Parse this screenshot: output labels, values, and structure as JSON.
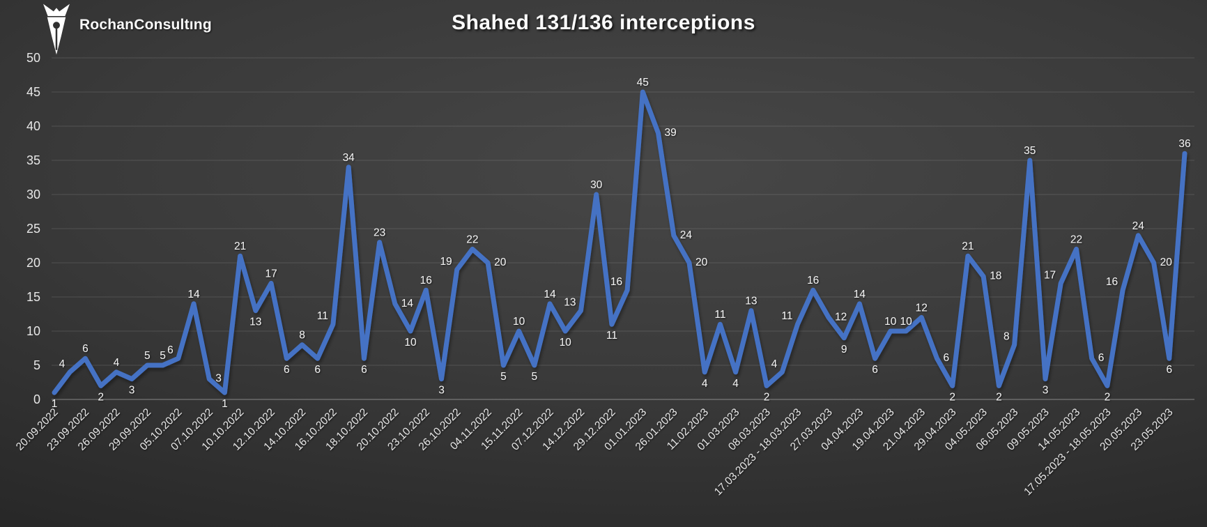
{
  "header": {
    "logo_text": "RochanConsultıng",
    "logo_icon": "pen-nib-icon",
    "title": "Shahed 131/136 interceptions"
  },
  "colors": {
    "line": "#4472C4",
    "data_label": "#F2F2F2",
    "axis_label": "#E8E8E8",
    "gridline_rgba": "rgba(255,255,255,0.13)",
    "axis_line_rgba": "rgba(255,255,255,0.28)",
    "title_text": "#FCFCFC",
    "logo_white": "#FFFFFF",
    "background_center": "#474747",
    "background_edge": "#222222"
  },
  "chart_data": {
    "type": "line",
    "title": "Shahed 131/136 interceptions",
    "legend": "none",
    "grid": "horizontal",
    "data_labels": true,
    "values": [
      1,
      4,
      6,
      2,
      4,
      3,
      5,
      5,
      6,
      14,
      3,
      1,
      21,
      13,
      17,
      6,
      8,
      6,
      11,
      34,
      6,
      23,
      14,
      10,
      16,
      3,
      19,
      22,
      20,
      5,
      10,
      5,
      14,
      10,
      13,
      30,
      11,
      16,
      45,
      39,
      24,
      20,
      4,
      11,
      4,
      13,
      2,
      4,
      11,
      16,
      12,
      9,
      14,
      6,
      10,
      10,
      12,
      6,
      2,
      21,
      18,
      2,
      8,
      35,
      3,
      17,
      22,
      6,
      2,
      16,
      24,
      20,
      6,
      36
    ],
    "x_axis": {
      "label_every_n_points": 2,
      "angle_degrees": 45,
      "tick_labels": [
        "20.09.2022",
        "23.09.2022",
        "26.09.2022",
        "29.09.2022",
        "05.10.2022",
        "07.10.2022",
        "10.10.2022",
        "12.10.2022",
        "14.10.2022",
        "16.10.2022",
        "18.10.2022",
        "20.10.2022",
        "23.10.2022",
        "26.10.2022",
        "04.11.2022",
        "15.11.2022",
        "07.12.2022",
        "14.12.2022",
        "29.12.2022",
        "01.01.2023",
        "26.01.2023",
        "11.02.2023",
        "01.03.2023",
        "08.03.2023",
        "17.03.2023 - 18.03.2023",
        "27.03.2023",
        "04.04.2023",
        "19.04.2023",
        "21.04.2023",
        "29.04.2023",
        "04.05.2023",
        "06.05.2023",
        "09.05.2023",
        "14.05.2023",
        "17.05.2023 - 18.05.2023",
        "20.05.2023",
        "23.05.2023"
      ]
    },
    "y_axis": {
      "min": 0,
      "max": 50,
      "tick_step": 5,
      "ticks": [
        0,
        5,
        10,
        15,
        20,
        25,
        30,
        35,
        40,
        45,
        50
      ]
    }
  }
}
